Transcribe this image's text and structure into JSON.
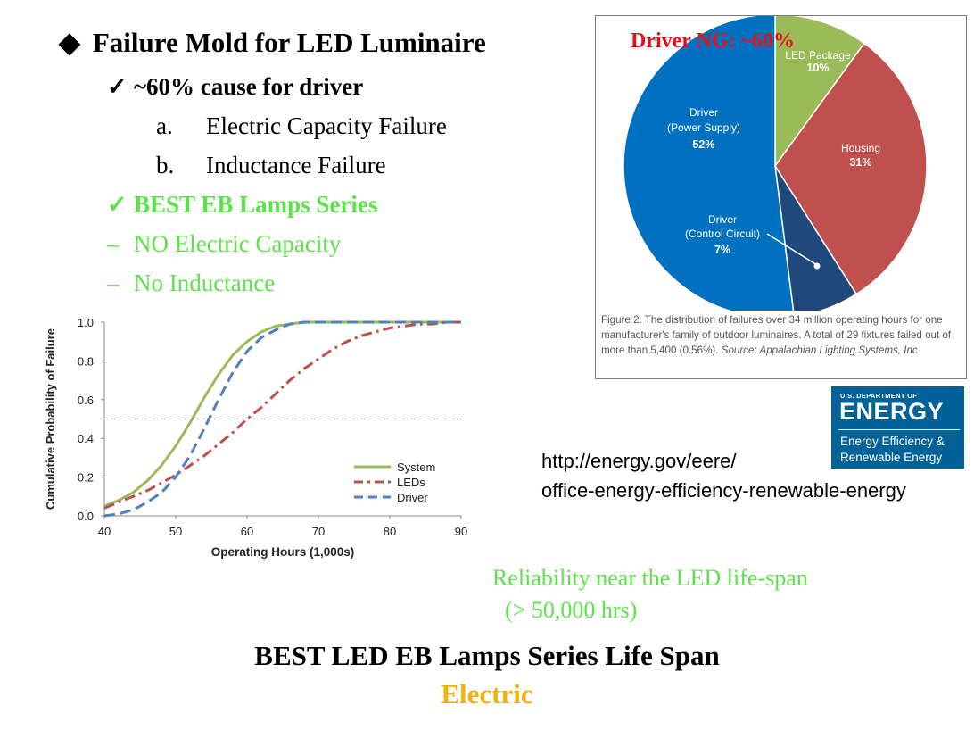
{
  "slide": {
    "title": "Failure Mold for LED Luminaire",
    "title_bullet": "◆",
    "point1": {
      "mark": "✓",
      "text": "~60% cause for driver"
    },
    "subitems": [
      {
        "letter": "a.",
        "text": "Electric Capacity Failure"
      },
      {
        "letter": "b.",
        "text": "Inductance Failure"
      }
    ],
    "point2": {
      "mark": "✓",
      "text": "BEST EB Lamps Series"
    },
    "dash_items": [
      {
        "mark": "–",
        "text": "NO Electric Capacity"
      },
      {
        "mark": "–",
        "text": "No Inductance"
      }
    ],
    "url_line1": "http://energy.gov/eere/",
    "url_line2": "office-energy-efficiency-renewable-energy",
    "reliability_line1": "Reliability near the LED life-span",
    "reliability_line2": "(> 50,000 hrs)",
    "footer_line1": "BEST LED  EB Lamps Series Life Span",
    "footer_line2": "Electric",
    "colors": {
      "green": "#5de34a",
      "red": "#e4111a",
      "orange": "#f2b10c"
    }
  },
  "pie_figure": {
    "overlay": "Driver NG: ~60%",
    "caption_main": "Figure 2. The distribution of failures over 34 million operating hours for one manufacturer's family of outdoor luminaires. A total of 29 fixtures failed out of more than 5,400 (0.56%).",
    "caption_source": "Source: Appalachian Lighting Systems, Inc."
  },
  "doe_logo": {
    "dept": "U.S. DEPARTMENT OF",
    "energy": "ENERGY",
    "line1": "Energy Efficiency &",
    "line2": "Renewable Energy"
  },
  "chart_data": [
    {
      "type": "pie",
      "slices": [
        {
          "label": "LED Package",
          "value": 10,
          "display": "10%",
          "color": "#9bbb59"
        },
        {
          "label": "Housing",
          "value": 31,
          "display": "31%",
          "color": "#c0504d"
        },
        {
          "label": "Driver (Control Circuit)",
          "value": 7,
          "display": "7%",
          "color": "#1f497d"
        },
        {
          "label": "Driver (Power Supply)",
          "value": 52,
          "display": "52%",
          "color": "#0070c0"
        }
      ]
    },
    {
      "type": "line",
      "xlabel": "Operating Hours (1,000s)",
      "ylabel": "Cumulative Probability of Failure",
      "xlim": [
        40,
        90
      ],
      "ylim": [
        0,
        1.0
      ],
      "xticks": [
        40,
        50,
        60,
        70,
        80,
        90
      ],
      "yticks": [
        0.0,
        0.2,
        0.4,
        0.6,
        0.8,
        1.0
      ],
      "ytick_labels": [
        "0.0",
        "0.2",
        "0.4",
        "0.6",
        "0.8",
        "1.0"
      ],
      "reference_line_y": 0.5,
      "legend_position": "bottom-right",
      "series": [
        {
          "name": "System",
          "color": "#9bbb59",
          "style": "solid",
          "x": [
            40,
            42,
            44,
            46,
            48,
            50,
            52,
            54,
            56,
            58,
            60,
            62,
            64,
            66,
            68,
            70,
            75,
            80,
            90
          ],
          "y": [
            0.05,
            0.08,
            0.12,
            0.18,
            0.26,
            0.36,
            0.48,
            0.61,
            0.73,
            0.83,
            0.9,
            0.95,
            0.98,
            0.99,
            1.0,
            1.0,
            1.0,
            1.0,
            1.0
          ]
        },
        {
          "name": "LEDs",
          "color": "#c0504d",
          "style": "dashdot",
          "x": [
            40,
            42,
            44,
            46,
            48,
            50,
            52,
            54,
            56,
            58,
            60,
            62,
            64,
            66,
            68,
            70,
            72,
            74,
            76,
            78,
            80,
            82,
            84,
            86,
            88,
            90
          ],
          "y": [
            0.04,
            0.07,
            0.1,
            0.13,
            0.17,
            0.21,
            0.26,
            0.31,
            0.37,
            0.43,
            0.5,
            0.56,
            0.63,
            0.7,
            0.76,
            0.81,
            0.86,
            0.9,
            0.93,
            0.95,
            0.97,
            0.98,
            0.99,
            0.99,
            1.0,
            1.0
          ]
        },
        {
          "name": "Driver",
          "color": "#4f81bd",
          "style": "dashed",
          "x": [
            40,
            42,
            44,
            46,
            48,
            50,
            52,
            54,
            56,
            58,
            60,
            62,
            64,
            66,
            68,
            70,
            75,
            80,
            90
          ],
          "y": [
            0.0,
            0.01,
            0.03,
            0.07,
            0.12,
            0.2,
            0.31,
            0.45,
            0.6,
            0.74,
            0.85,
            0.92,
            0.96,
            0.99,
            1.0,
            1.0,
            1.0,
            1.0,
            1.0
          ]
        }
      ]
    }
  ]
}
